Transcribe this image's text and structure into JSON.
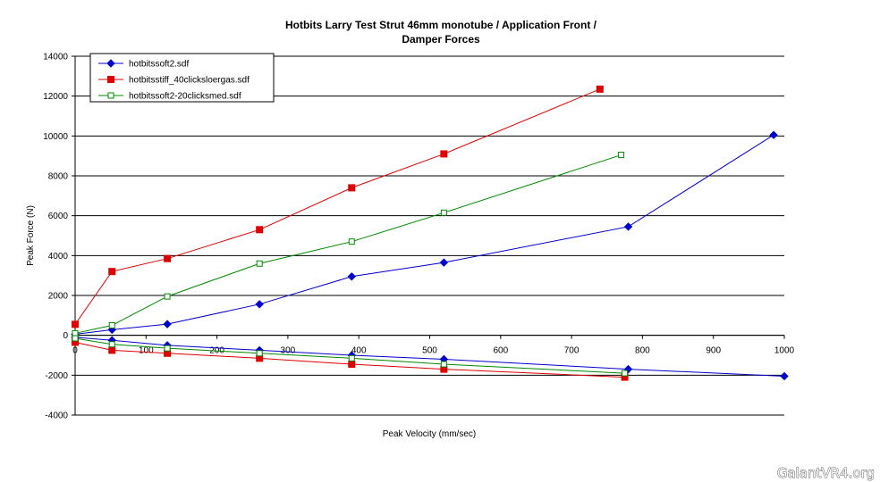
{
  "chart_data": {
    "type": "line",
    "title": "Hotbits Larry Test Strut 46mm monotube / Application Front /",
    "subtitle": "Damper Forces",
    "xlabel": "Peak Velocity (mm/sec)",
    "ylabel": "Peak Force (N)",
    "xlim": [
      0,
      1000
    ],
    "ylim": [
      -4000,
      14000
    ],
    "x_ticks": [
      "0",
      "100",
      "200",
      "300",
      "400",
      "500",
      "600",
      "700",
      "800",
      "900",
      "1000"
    ],
    "y_ticks": [
      "-4000",
      "-2000",
      "0",
      "2000",
      "4000",
      "6000",
      "8000",
      "10000",
      "12000",
      "14000"
    ],
    "grid": "horizontal",
    "legend_position": "top-left",
    "series": [
      {
        "name": "hotbitssoft2.sdf",
        "color": "#0000cc",
        "marker": "diamond",
        "compression": [
          [
            0,
            50
          ],
          [
            52,
            280
          ],
          [
            130,
            560
          ],
          [
            260,
            1560
          ],
          [
            390,
            2950
          ],
          [
            520,
            3650
          ],
          [
            780,
            5450
          ],
          [
            985,
            10050
          ]
        ],
        "rebound": [
          [
            0,
            -100
          ],
          [
            52,
            -250
          ],
          [
            130,
            -500
          ],
          [
            260,
            -750
          ],
          [
            390,
            -1000
          ],
          [
            520,
            -1200
          ],
          [
            780,
            -1700
          ],
          [
            1000,
            -2050
          ]
        ]
      },
      {
        "name": "hotbitsstiff_40clicksloergas.sdf",
        "color": "#dd0000",
        "marker": "square",
        "compression": [
          [
            0,
            550
          ],
          [
            52,
            3200
          ],
          [
            130,
            3850
          ],
          [
            260,
            5300
          ],
          [
            390,
            7400
          ],
          [
            520,
            9100
          ],
          [
            740,
            12350
          ]
        ],
        "rebound": [
          [
            0,
            -350
          ],
          [
            52,
            -750
          ],
          [
            130,
            -900
          ],
          [
            260,
            -1150
          ],
          [
            390,
            -1450
          ],
          [
            520,
            -1700
          ],
          [
            775,
            -2100
          ]
        ]
      },
      {
        "name": "hotbitssoft2-20clicksmed.sdf",
        "color": "#008800",
        "marker": "open-square",
        "compression": [
          [
            0,
            100
          ],
          [
            52,
            500
          ],
          [
            130,
            1950
          ],
          [
            260,
            3600
          ],
          [
            390,
            4700
          ],
          [
            520,
            6150
          ],
          [
            770,
            9050
          ]
        ],
        "rebound": [
          [
            0,
            -150
          ],
          [
            52,
            -450
          ],
          [
            130,
            -650
          ],
          [
            260,
            -900
          ],
          [
            390,
            -1150
          ],
          [
            520,
            -1450
          ],
          [
            775,
            -1900
          ]
        ]
      }
    ]
  },
  "watermark": "GalantVR4.org"
}
